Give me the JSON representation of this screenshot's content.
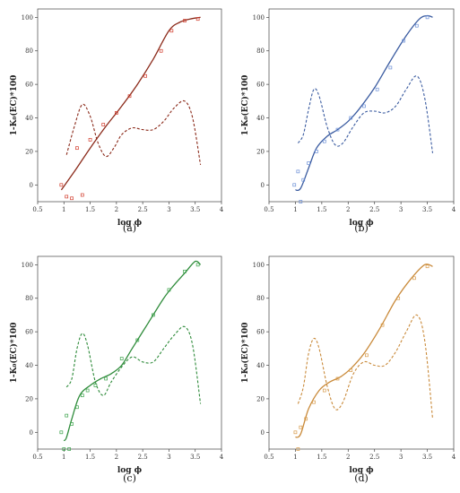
{
  "chart_data": [
    {
      "type": "line",
      "panel_label": "(a)",
      "xlabel": "log ϕ",
      "ylabel": "1-K₀(EC)*100",
      "xlim": [
        0.5,
        4
      ],
      "ylim": [
        -10,
        105
      ],
      "xticks": [
        "0.5",
        "1",
        "1.5",
        "2",
        "2.5",
        "3",
        "3.5",
        "4"
      ],
      "yticks": [
        "0",
        "20",
        "40",
        "60",
        "80",
        "100"
      ],
      "color": "#8B2A1A",
      "points_color": "#d23a2a",
      "solid_curve": {
        "x": [
          0.95,
          1.2,
          1.5,
          1.8,
          2.1,
          2.4,
          2.7,
          3.0,
          3.2,
          3.4,
          3.6
        ],
        "y": [
          -3,
          8,
          22,
          35,
          47,
          60,
          75,
          92,
          97,
          99,
          100
        ]
      },
      "dashed_curve": {
        "x": [
          1.05,
          1.2,
          1.35,
          1.5,
          1.65,
          1.8,
          1.95,
          2.1,
          2.3,
          2.5,
          2.7,
          2.9,
          3.1,
          3.3,
          3.45,
          3.6
        ],
        "y": [
          18,
          35,
          48,
          41,
          25,
          17,
          22,
          30,
          34,
          33,
          33,
          38,
          46,
          50,
          40,
          12
        ]
      },
      "scatter": {
        "x": [
          0.95,
          1.05,
          1.15,
          1.25,
          1.35,
          1.5,
          1.75,
          2.0,
          2.25,
          2.55,
          2.85,
          3.05,
          3.3,
          3.55
        ],
        "y": [
          0,
          -7,
          -8,
          22,
          -6,
          27,
          36,
          43,
          53,
          65,
          80,
          92,
          98,
          99
        ]
      }
    },
    {
      "type": "line",
      "panel_label": "(b)",
      "xlabel": "log ϕ",
      "ylabel": "1-K₀(EC)*100",
      "xlim": [
        0.5,
        4
      ],
      "ylim": [
        -10,
        105
      ],
      "xticks": [
        "0.5",
        "1",
        "1.5",
        "2",
        "2.5",
        "3",
        "3.5",
        "4"
      ],
      "yticks": [
        "0",
        "20",
        "40",
        "60",
        "80",
        "100"
      ],
      "color": "#3A5BA0",
      "points_color": "#6b8fd6",
      "solid_curve": {
        "x": [
          1.0,
          1.1,
          1.25,
          1.4,
          1.6,
          1.8,
          2.0,
          2.2,
          2.5,
          2.8,
          3.1,
          3.35,
          3.5,
          3.6
        ],
        "y": [
          -3,
          -2,
          10,
          22,
          29,
          33,
          38,
          45,
          58,
          74,
          89,
          99,
          101,
          100
        ]
      },
      "dashed_curve": {
        "x": [
          1.05,
          1.15,
          1.25,
          1.35,
          1.45,
          1.6,
          1.75,
          1.9,
          2.1,
          2.3,
          2.5,
          2.7,
          2.9,
          3.1,
          3.3,
          3.45,
          3.6
        ],
        "y": [
          25,
          30,
          45,
          57,
          53,
          35,
          24,
          25,
          35,
          43,
          44,
          43,
          47,
          57,
          65,
          52,
          19
        ]
      },
      "scatter": {
        "x": [
          0.98,
          1.05,
          1.1,
          1.15,
          1.25,
          1.4,
          1.55,
          1.8,
          2.05,
          2.3,
          2.55,
          2.8,
          3.05,
          3.3,
          3.5
        ],
        "y": [
          0,
          8,
          -10,
          3,
          13,
          20,
          26,
          33,
          40,
          47,
          57,
          70,
          86,
          95,
          100
        ]
      }
    },
    {
      "type": "line",
      "panel_label": "(c)",
      "xlabel": "log ϕ",
      "ylabel": "1-K₀(EC)*100",
      "xlim": [
        0.5,
        4
      ],
      "ylim": [
        -10,
        105
      ],
      "xticks": [
        "0.5",
        "1",
        "1.5",
        "2",
        "2.5",
        "3",
        "3.5",
        "4"
      ],
      "yticks": [
        "0",
        "20",
        "40",
        "60",
        "80",
        "100"
      ],
      "color": "#2E8B3A",
      "points_color": "#3aa24a",
      "solid_curve": {
        "x": [
          1.0,
          1.05,
          1.15,
          1.3,
          1.5,
          1.7,
          1.9,
          2.1,
          2.3,
          2.6,
          2.9,
          3.1,
          3.3,
          3.5,
          3.6
        ],
        "y": [
          -5,
          -3,
          8,
          22,
          28,
          32,
          35,
          40,
          50,
          65,
          80,
          88,
          95,
          102,
          100
        ]
      },
      "dashed_curve": {
        "x": [
          1.05,
          1.15,
          1.25,
          1.35,
          1.45,
          1.6,
          1.75,
          1.9,
          2.1,
          2.3,
          2.5,
          2.7,
          2.9,
          3.1,
          3.3,
          3.45,
          3.6
        ],
        "y": [
          27,
          32,
          50,
          59,
          52,
          30,
          22,
          30,
          39,
          45,
          42,
          42,
          50,
          58,
          63,
          52,
          17
        ]
      },
      "scatter": {
        "x": [
          0.95,
          1.0,
          1.05,
          1.1,
          1.15,
          1.25,
          1.35,
          1.45,
          1.6,
          1.8,
          2.1,
          2.4,
          2.7,
          3.0,
          3.3,
          3.55
        ],
        "y": [
          0,
          -10,
          10,
          -10,
          5,
          15,
          22,
          25,
          28,
          32,
          44,
          55,
          70,
          85,
          96,
          100
        ]
      }
    },
    {
      "type": "line",
      "panel_label": "(d)",
      "xlabel": "log ϕ",
      "ylabel": "1-K₀(EC)*100",
      "xlim": [
        0.5,
        4
      ],
      "ylim": [
        -10,
        105
      ],
      "xticks": [
        "0.5",
        "1",
        "1.5",
        "2",
        "2.5",
        "3",
        "3.5",
        "4"
      ],
      "yticks": [
        "0",
        "20",
        "40",
        "60",
        "80",
        "100"
      ],
      "color": "#C98A3A",
      "points_color": "#d79a4a",
      "solid_curve": {
        "x": [
          1.0,
          1.1,
          1.25,
          1.45,
          1.65,
          1.85,
          2.05,
          2.3,
          2.6,
          2.9,
          3.2,
          3.45,
          3.6
        ],
        "y": [
          -3,
          -1,
          14,
          25,
          30,
          33,
          38,
          47,
          62,
          79,
          92,
          100,
          99
        ]
      },
      "dashed_curve": {
        "x": [
          1.05,
          1.15,
          1.25,
          1.35,
          1.45,
          1.6,
          1.75,
          1.9,
          2.1,
          2.3,
          2.5,
          2.7,
          2.9,
          3.1,
          3.3,
          3.45,
          3.6
        ],
        "y": [
          17,
          27,
          47,
          56,
          50,
          28,
          14,
          18,
          35,
          42,
          40,
          40,
          48,
          60,
          70,
          55,
          8
        ]
      },
      "scatter": {
        "x": [
          1.0,
          1.05,
          1.1,
          1.2,
          1.35,
          1.55,
          1.8,
          2.05,
          2.35,
          2.65,
          2.95,
          3.25,
          3.5
        ],
        "y": [
          0,
          -10,
          3,
          8,
          18,
          25,
          32,
          37,
          46,
          64,
          80,
          92,
          99
        ]
      }
    }
  ]
}
